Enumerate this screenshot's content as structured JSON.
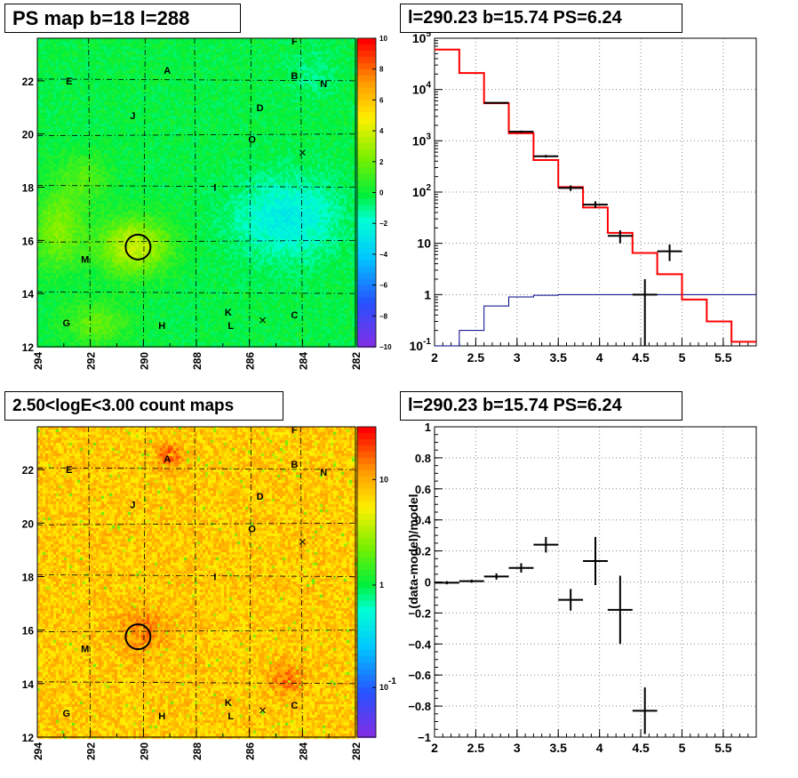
{
  "panels": {
    "ps_map_title": "PS map b=18 l=288",
    "spectrum_title": "l=290.23 b=15.74 PS=6.24",
    "count_map_title": "2.50<logE<3.00 count maps",
    "residual_title": "l=290.23 b=15.74 PS=6.24"
  },
  "map_labels": [
    {
      "text": "A",
      "l": 289.1,
      "b": 22.4
    },
    {
      "text": "B",
      "l": 284.3,
      "b": 22.2
    },
    {
      "text": "C",
      "l": 284.3,
      "b": 13.2
    },
    {
      "text": "D",
      "l": 285.6,
      "b": 21.0
    },
    {
      "text": "E",
      "l": 292.8,
      "b": 22.0
    },
    {
      "text": "F",
      "l": 284.3,
      "b": 23.5
    },
    {
      "text": "G",
      "l": 292.9,
      "b": 12.9
    },
    {
      "text": "H",
      "l": 289.3,
      "b": 12.8
    },
    {
      "text": "I",
      "l": 287.3,
      "b": 18.0
    },
    {
      "text": "J",
      "l": 290.4,
      "b": 20.7
    },
    {
      "text": "K",
      "l": 286.8,
      "b": 13.3
    },
    {
      "text": "L",
      "l": 286.7,
      "b": 12.8
    },
    {
      "text": "M",
      "l": 292.2,
      "b": 15.3
    },
    {
      "text": "N",
      "l": 283.2,
      "b": 21.9
    },
    {
      "text": "O",
      "l": 285.9,
      "b": 19.8
    }
  ],
  "map_markers": {
    "circle": {
      "l": 290.2,
      "b": 15.75
    },
    "crosses": [
      {
        "l": 284.0,
        "b": 19.3
      },
      {
        "l": 285.5,
        "b": 13.0
      }
    ]
  },
  "colors": {
    "model_line": "#ff0000",
    "second_line": "#00008b",
    "data_points": "#000000"
  },
  "chart_data": [
    {
      "type": "heatmap",
      "name": "PS map",
      "xlim": [
        294,
        282
      ],
      "ylim": [
        12,
        23.6
      ],
      "x_ticks": [
        "294",
        "292",
        "290",
        "288",
        "286",
        "284",
        "282"
      ],
      "y_ticks": [
        "12",
        "14",
        "16",
        "18",
        "20",
        "22"
      ],
      "colorbar_ticks": [
        "10",
        "8",
        "6",
        "4",
        "2",
        "0",
        "−2",
        "−4",
        "−6",
        "−8",
        "−10"
      ],
      "zlim": [
        -10,
        10
      ]
    },
    {
      "type": "line",
      "name": "spectrum",
      "log_y": true,
      "xlim": [
        2,
        5.9
      ],
      "ylim": [
        0.1,
        100000
      ],
      "x_ticks": [
        "2",
        "2.5",
        "3",
        "3.5",
        "4",
        "4.5",
        "5",
        "5.5"
      ],
      "y_ticks": [
        "10^-1",
        "1",
        "10",
        "10^2",
        "10^3",
        "10^4",
        "10^5"
      ],
      "grid": true,
      "bin_edges": [
        2.0,
        2.3,
        2.6,
        2.9,
        3.2,
        3.5,
        3.8,
        4.1,
        4.4,
        4.7,
        5.0,
        5.3,
        5.6,
        5.9
      ],
      "model": [
        60000,
        21000,
        5400,
        1400,
        420,
        125,
        50,
        16,
        6.5,
        2.5,
        0.8,
        0.3,
        0.12
      ],
      "second": [
        0.05,
        0.2,
        0.6,
        0.9,
        0.97,
        1.0,
        1.0,
        1.0,
        1.0,
        1.0,
        1.0,
        1.0,
        1.0
      ],
      "data": [
        {
          "x": 2.75,
          "y": 5500,
          "xerr": 0.15,
          "ylo": 5300,
          "yhi": 5700
        },
        {
          "x": 3.05,
          "y": 1500,
          "xerr": 0.15,
          "ylo": 1420,
          "yhi": 1580
        },
        {
          "x": 3.35,
          "y": 500,
          "xerr": 0.15,
          "ylo": 470,
          "yhi": 530
        },
        {
          "x": 3.65,
          "y": 120,
          "xerr": 0.15,
          "ylo": 105,
          "yhi": 135
        },
        {
          "x": 3.95,
          "y": 57,
          "xerr": 0.15,
          "ylo": 49,
          "yhi": 66
        },
        {
          "x": 4.25,
          "y": 14,
          "xerr": 0.15,
          "ylo": 10,
          "yhi": 18
        },
        {
          "x": 4.55,
          "y": 1,
          "xerr": 0.15,
          "ylo": 0.1,
          "yhi": 2
        },
        {
          "x": 4.85,
          "y": 7,
          "xerr": 0.15,
          "ylo": 4.5,
          "yhi": 9.5
        }
      ]
    },
    {
      "type": "heatmap",
      "name": "count map",
      "xlim": [
        294,
        282
      ],
      "ylim": [
        12,
        23.6
      ],
      "x_ticks": [
        "294",
        "292",
        "290",
        "288",
        "286",
        "284",
        "282"
      ],
      "y_ticks": [
        "12",
        "14",
        "16",
        "18",
        "20",
        "22"
      ],
      "colorbar_ticks": [
        "10",
        "1",
        "10^-1"
      ],
      "log_z": true
    },
    {
      "type": "scatter",
      "name": "residual",
      "ylabel": "(data-model)/model",
      "xlim": [
        2,
        5.9
      ],
      "ylim": [
        -1,
        1
      ],
      "x_ticks": [
        "2",
        "2.5",
        "3",
        "3.5",
        "4",
        "4.5",
        "5",
        "5.5"
      ],
      "y_ticks": [
        "−1",
        "−0.8",
        "−0.6",
        "−0.4",
        "−0.2",
        "0",
        "0.2",
        "0.4",
        "0.6",
        "0.8",
        "1"
      ],
      "grid": true,
      "data": [
        {
          "x": 2.15,
          "y": -0.005,
          "xerr": 0.15,
          "yerr": 0.01
        },
        {
          "x": 2.45,
          "y": 0.005,
          "xerr": 0.15,
          "yerr": 0.01
        },
        {
          "x": 2.75,
          "y": 0.035,
          "xerr": 0.15,
          "yerr": 0.02
        },
        {
          "x": 3.05,
          "y": 0.09,
          "xerr": 0.15,
          "yerr": 0.03
        },
        {
          "x": 3.35,
          "y": 0.24,
          "xerr": 0.15,
          "yerr": 0.05
        },
        {
          "x": 3.65,
          "y": -0.115,
          "xerr": 0.15,
          "yerr": 0.07
        },
        {
          "x": 3.95,
          "y": 0.135,
          "xerr": 0.15,
          "yerr": 0.155
        },
        {
          "x": 4.25,
          "y": -0.18,
          "xerr": 0.15,
          "yerr": 0.22
        },
        {
          "x": 4.55,
          "y": -0.83,
          "xerr": 0.15,
          "yerr": 0.15
        }
      ]
    }
  ]
}
